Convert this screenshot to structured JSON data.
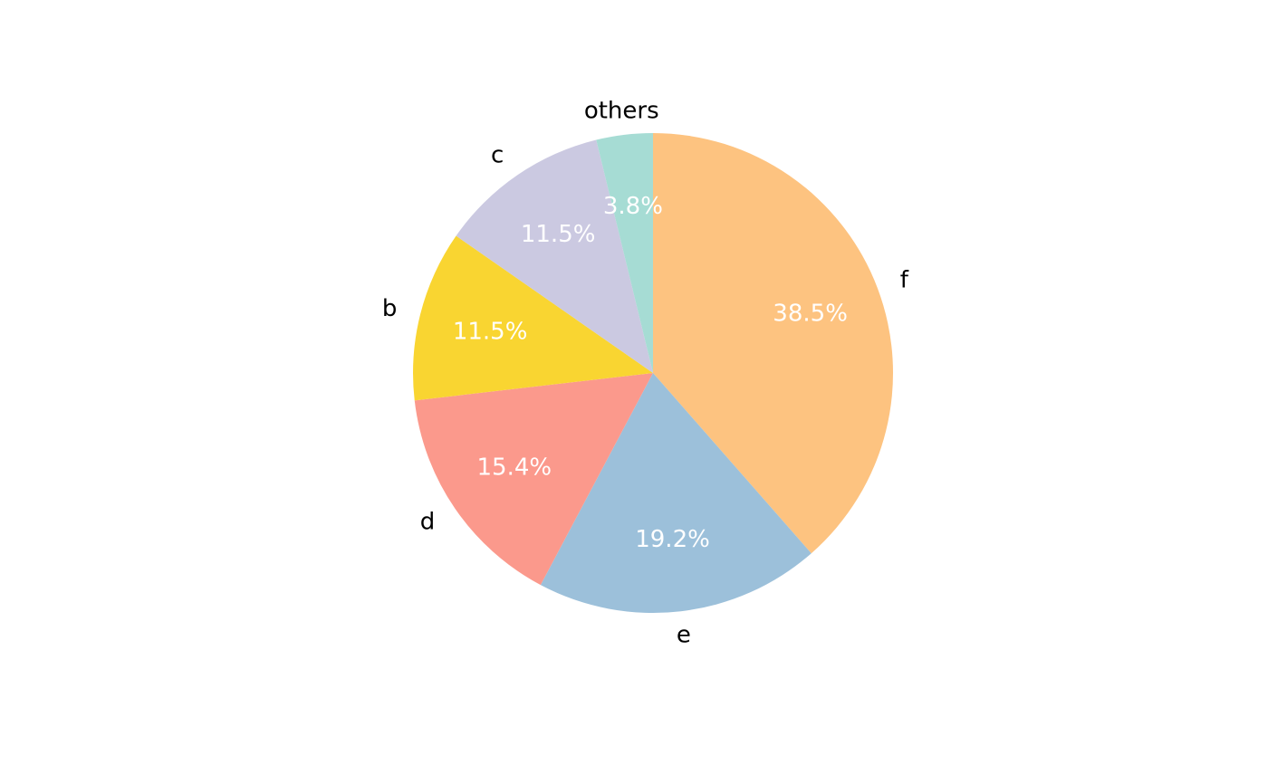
{
  "chart_data": {
    "type": "pie",
    "title": "",
    "start_angle_deg": 90,
    "direction": "clockwise",
    "slices": [
      {
        "label": "f",
        "value": 38.5,
        "pct_text": "38.5%",
        "color": "#FDC380"
      },
      {
        "label": "e",
        "value": 19.2,
        "pct_text": "19.2%",
        "color": "#9CC0DA"
      },
      {
        "label": "d",
        "value": 15.4,
        "pct_text": "15.4%",
        "color": "#FB998C"
      },
      {
        "label": "b",
        "value": 11.5,
        "pct_text": "11.5%",
        "color": "#F9D531"
      },
      {
        "label": "c",
        "value": 11.5,
        "pct_text": "11.5%",
        "color": "#CBC9E1"
      },
      {
        "label": "others",
        "value": 3.8,
        "pct_text": "3.8%",
        "color": "#A6DCD4"
      }
    ],
    "legend": "none"
  }
}
